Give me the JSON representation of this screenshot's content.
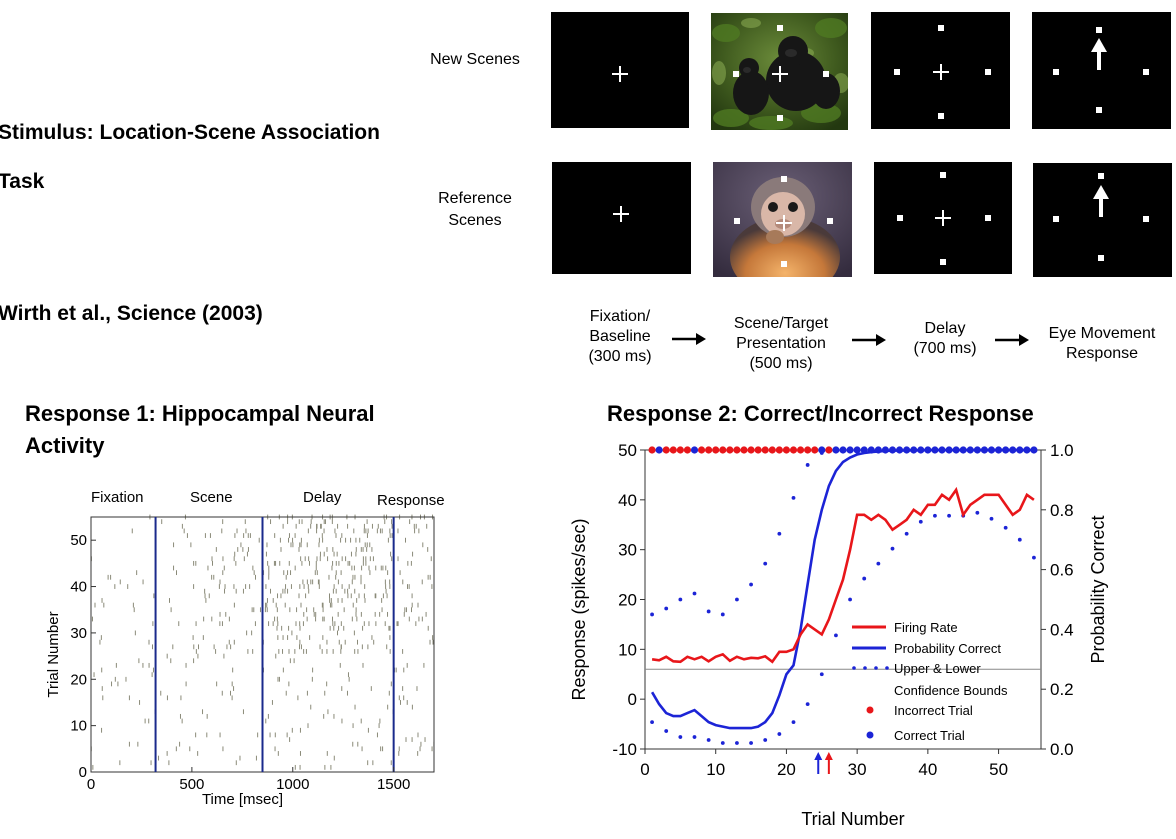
{
  "header": {
    "stimulus_title": "Stimulus: Location-Scene Association",
    "stimulus_title_cont": "Task",
    "citation": "Wirth et al., Science (2003)"
  },
  "rows": {
    "new_label": "New Scenes",
    "ref_label_1": "Reference",
    "ref_label_2": "Scenes"
  },
  "stages": {
    "s1": [
      "Fixation/",
      "Baseline",
      "(300 ms)"
    ],
    "s2": [
      "Scene/Target",
      "Presentation",
      "(500 ms)"
    ],
    "s3": [
      "Delay",
      "(700 ms)"
    ],
    "s4": [
      "Eye Movement",
      "Response"
    ]
  },
  "response1": {
    "title_line1": "Response 1: Hippocampal  Neural",
    "title_line2": "Activity",
    "phases": [
      "Fixation",
      "Scene",
      "Delay",
      "Response"
    ],
    "xlabel": "Time [msec]",
    "ylabel": "Trial Number",
    "xticks": [
      "0",
      "500",
      "1000",
      "1500"
    ],
    "yticks": [
      "0",
      "10",
      "20",
      "30",
      "40",
      "50"
    ],
    "xlim": [
      0,
      1700
    ],
    "ylim": [
      0,
      55
    ],
    "phase_boundaries_ms": [
      320,
      850,
      1500
    ],
    "boundary_color": "#1a2a8c",
    "tick_color": "#8a8a78"
  },
  "response2": {
    "title": "Response 2: Correct/Incorrect Response",
    "xlabel": "Trial Number",
    "ylabel_left": "Response (spikes/sec)",
    "ylabel_right": "Probability Correct",
    "xticks": [
      "0",
      "10",
      "20",
      "30",
      "40",
      "50"
    ],
    "yticks_left": [
      "-10",
      "0",
      "10",
      "20",
      "30",
      "40",
      "50"
    ],
    "yticks_right": [
      "0.0",
      "0.2",
      "0.4",
      "0.6",
      "0.8",
      "1.0"
    ],
    "legend": {
      "firing": "Firing Rate",
      "prob": "Probability Correct",
      "bounds_1": "Upper & Lower",
      "bounds_2": "Confidence Bounds",
      "incorrect": "Incorrect Trial",
      "correct": "Correct Trial"
    },
    "colors": {
      "firing": "#e8161a",
      "prob": "#1c24d6",
      "incorrect": "#e8161a",
      "correct": "#1c24d6",
      "baseline": "#888888"
    }
  },
  "chart_data": [
    {
      "type": "scatter",
      "title": "Response 1: Hippocampal  Neural Activity",
      "xlabel": "Time [msec]",
      "ylabel": "Trial Number",
      "xlim": [
        0,
        1700
      ],
      "ylim": [
        0,
        55
      ],
      "xticks": [
        0,
        500,
        1000,
        1500
      ],
      "yticks": [
        0,
        10,
        20,
        30,
        40,
        50
      ],
      "phase_labels": [
        "Fixation",
        "Scene",
        "Delay",
        "Response"
      ],
      "phase_boundaries_ms": [
        320,
        850,
        1500
      ]
    },
    {
      "type": "line",
      "title": "Response 2: Correct/Incorrect Response",
      "xlabel": "Trial Number",
      "ylabel": "Response (spikes/sec)",
      "ylabel_right": "Probability Correct",
      "xlim": [
        0,
        56
      ],
      "ylim": [
        -10,
        50
      ],
      "ylim_right": [
        0,
        1
      ],
      "baseline_firing_rate": 6,
      "series": [
        {
          "name": "Firing Rate",
          "x": [
            1,
            2,
            3,
            4,
            5,
            6,
            7,
            8,
            9,
            10,
            11,
            12,
            13,
            14,
            15,
            16,
            17,
            18,
            19,
            20,
            21,
            22,
            23,
            24,
            25,
            26,
            27,
            28,
            29,
            30,
            31,
            32,
            33,
            34,
            35,
            36,
            37,
            38,
            39,
            40,
            41,
            42,
            43,
            44,
            45,
            46,
            47,
            48,
            49,
            50,
            51,
            52,
            53,
            54,
            55
          ],
          "y": [
            8,
            7.8,
            8.5,
            7.6,
            7.5,
            8.5,
            8,
            8.5,
            7.6,
            8.5,
            9,
            7.7,
            8.5,
            8,
            8.3,
            8.2,
            8.6,
            7.5,
            9.5,
            9.5,
            10,
            13,
            15,
            14,
            13,
            16,
            20,
            24,
            30,
            37,
            37,
            36,
            37,
            36,
            34,
            35,
            36,
            38,
            37,
            39,
            39,
            41,
            40,
            42,
            37,
            39,
            40,
            41,
            41,
            41,
            39,
            37,
            38,
            41,
            40
          ]
        },
        {
          "name": "Probability Correct",
          "x": [
            1,
            2,
            3,
            4,
            5,
            6,
            7,
            8,
            9,
            10,
            11,
            12,
            13,
            14,
            15,
            16,
            17,
            18,
            19,
            20,
            21,
            22,
            23,
            24,
            25,
            26,
            27,
            28,
            29,
            30,
            31,
            32,
            33,
            34,
            35,
            36,
            37,
            38,
            39,
            40,
            41,
            42,
            43,
            44,
            45,
            46,
            47,
            48,
            49,
            50,
            51,
            52,
            53,
            54,
            55
          ],
          "y": [
            0.19,
            0.15,
            0.12,
            0.11,
            0.11,
            0.12,
            0.13,
            0.11,
            0.09,
            0.08,
            0.075,
            0.07,
            0.07,
            0.07,
            0.07,
            0.075,
            0.09,
            0.12,
            0.18,
            0.25,
            0.28,
            0.4,
            0.55,
            0.7,
            0.8,
            0.88,
            0.93,
            0.96,
            0.975,
            0.985,
            0.99,
            0.993,
            0.995,
            0.997,
            0.998,
            0.998,
            0.999,
            0.999,
            0.999,
            1,
            1,
            1,
            1,
            1,
            1,
            1,
            1,
            1,
            1,
            1,
            1,
            1,
            1,
            1,
            1
          ]
        },
        {
          "name": "Upper & Lower Confidence Bounds",
          "x": [
            1,
            3,
            5,
            7,
            9,
            11,
            13,
            15,
            17,
            19,
            21,
            23,
            25,
            27,
            29,
            31,
            33,
            35,
            37,
            39,
            41,
            43,
            45,
            47,
            49,
            51,
            53,
            55
          ],
          "upper": [
            0.45,
            0.47,
            0.5,
            0.52,
            0.46,
            0.45,
            0.5,
            0.55,
            0.62,
            0.72,
            0.84,
            0.95,
            0.99,
            1,
            1,
            1,
            1,
            1,
            1,
            1,
            1,
            1,
            1,
            1,
            1,
            1,
            1,
            1
          ],
          "lower": [
            0.09,
            0.06,
            0.04,
            0.04,
            0.03,
            0.02,
            0.02,
            0.02,
            0.03,
            0.05,
            0.09,
            0.15,
            0.25,
            0.38,
            0.5,
            0.57,
            0.62,
            0.67,
            0.72,
            0.76,
            0.78,
            0.78,
            0.78,
            0.79,
            0.77,
            0.74,
            0.7,
            0.64
          ]
        },
        {
          "name": "Incorrect Trial",
          "x": [
            1,
            3,
            4,
            5,
            6,
            8,
            9,
            10,
            11,
            12,
            13,
            14,
            15,
            16,
            17,
            18,
            19,
            20,
            21,
            22,
            23,
            24,
            26
          ]
        },
        {
          "name": "Correct Trial",
          "x": [
            2,
            7,
            25,
            27,
            28,
            29,
            30,
            31,
            32,
            33,
            34,
            35,
            36,
            37,
            38,
            39,
            40,
            41,
            42,
            43,
            44,
            45,
            46,
            47,
            48,
            49,
            50,
            51,
            52,
            53,
            54,
            55
          ]
        }
      ],
      "markers": [
        {
          "x": 24.5,
          "color": "blue"
        },
        {
          "x": 26,
          "color": "red"
        }
      ]
    }
  ]
}
